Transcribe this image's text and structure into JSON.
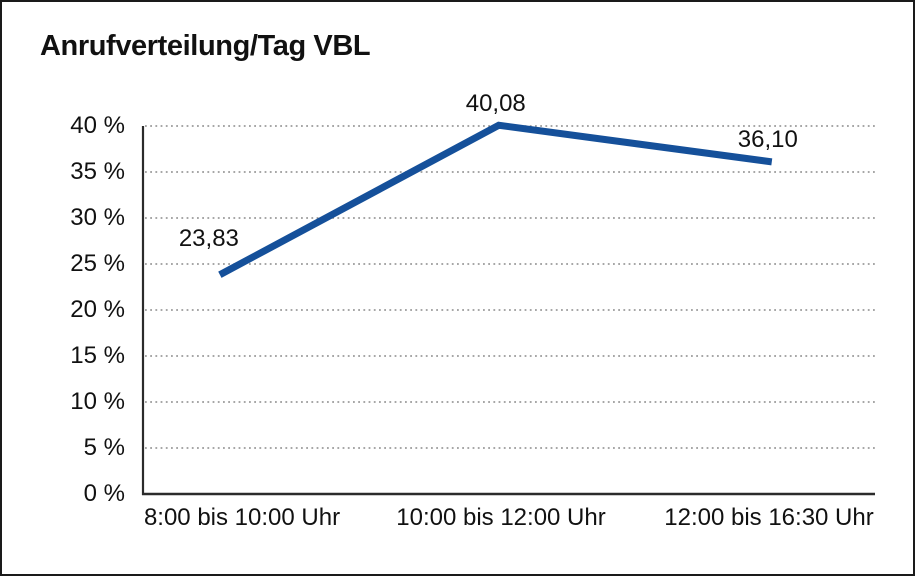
{
  "chart_data": {
    "type": "line",
    "title": "Anrufverteilung/Tag VBL",
    "categories": [
      "8:00 bis 10:00 Uhr",
      "10:00 bis 12:00 Uhr",
      "12:00 bis 16:30 Uhr"
    ],
    "values": [
      23.83,
      40.08,
      36.1
    ],
    "value_labels": [
      "23,83",
      "40,08",
      "36,10"
    ],
    "xlabel": "",
    "ylabel": "",
    "ylim": [
      0,
      40
    ],
    "ytick_step": 5,
    "ytick_labels": [
      "0 %",
      "5 %",
      "10 %",
      "15 %",
      "20 %",
      "25 %",
      "30 %",
      "35 %",
      "40 %"
    ],
    "grid": "horizontal-dotted",
    "legend": "none",
    "line_color": "#15509a",
    "axis_color": "#2b2b2b",
    "grid_color": "#8a8a8a",
    "text_color": "#111111",
    "background": "#ffffff"
  }
}
